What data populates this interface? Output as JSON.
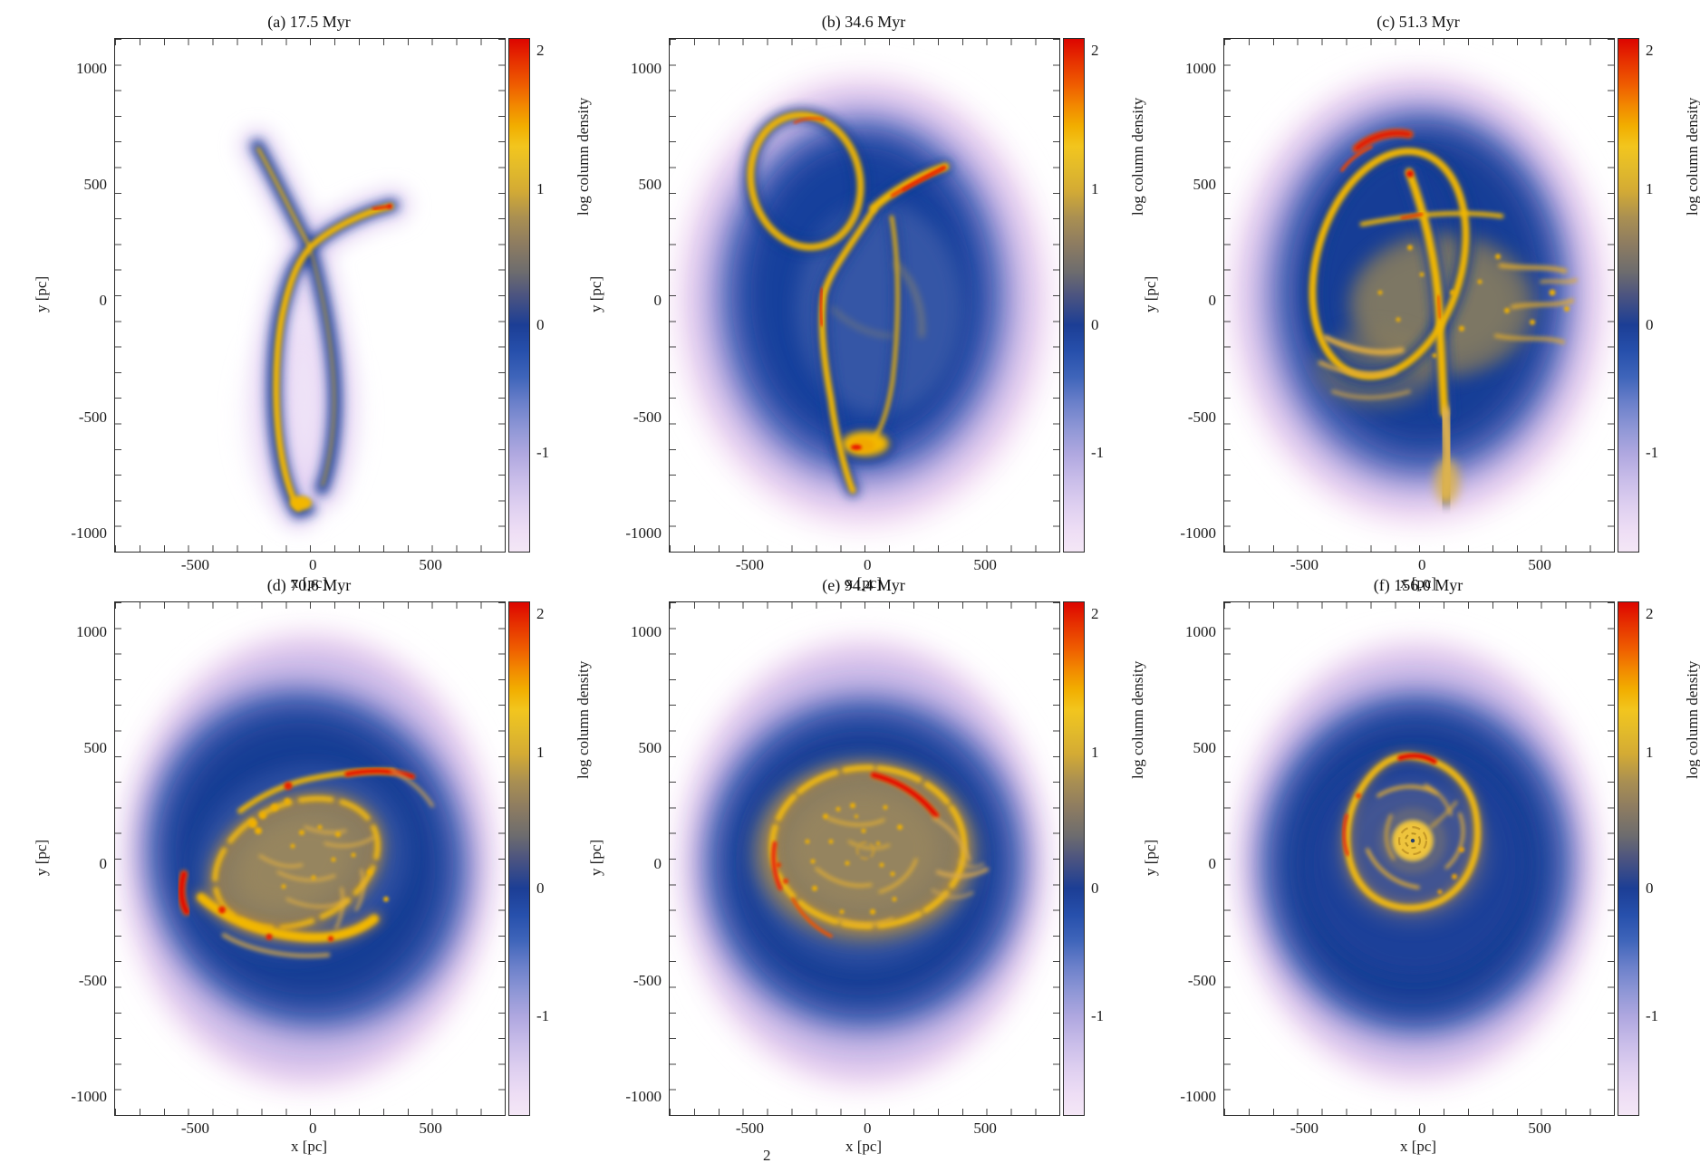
{
  "figure": {
    "xlabel": "x [pc]",
    "ylabel": "y [pc]",
    "colorbar_label": "log column density",
    "caption_fragment": "2",
    "y_ticks": [
      "1000",
      "500",
      "0",
      "-500",
      "-1000"
    ],
    "x_ticks": [
      "-500",
      "0",
      "500"
    ],
    "cb_ticks": [
      "2",
      "1",
      "0",
      "-1"
    ],
    "panels": [
      {
        "key": "a",
        "title": "(a) 17.5 Myr"
      },
      {
        "key": "b",
        "title": "(b) 34.6 Myr"
      },
      {
        "key": "c",
        "title": "(c) 51.3 Myr"
      },
      {
        "key": "d",
        "title": "(d) 70.6 Myr"
      },
      {
        "key": "e",
        "title": "(e) 94.4 Myr"
      },
      {
        "key": "f",
        "title": "(f) 156.0 Myr"
      }
    ]
  },
  "chart_data": {
    "type": "heatmap",
    "layout": "2 rows x 3 columns of simulation snapshots",
    "panels": [
      {
        "label": "(a) 17.5 Myr",
        "time_myr": 17.5
      },
      {
        "label": "(b) 34.6 Myr",
        "time_myr": 34.6
      },
      {
        "label": "(c) 51.3 Myr",
        "time_myr": 51.3
      },
      {
        "label": "(d) 70.6 Myr",
        "time_myr": 70.6
      },
      {
        "label": "(e) 94.4 Myr",
        "time_myr": 94.4
      },
      {
        "label": "(f) 156.0 Myr",
        "time_myr": 156.0
      }
    ],
    "xlabel": "x [pc]",
    "ylabel": "y [pc]",
    "x_ticks": [
      -500,
      0,
      500
    ],
    "y_ticks": [
      -1000,
      -500,
      0,
      500,
      1000
    ],
    "xlim": [
      -850,
      850
    ],
    "ylim": [
      -1080,
      1120
    ],
    "grid": false,
    "legend": "none",
    "colorbar": {
      "label": "log column density",
      "ticks": [
        2,
        1,
        0,
        -1
      ],
      "range": [
        2,
        -1.7
      ],
      "colormap_stops": [
        {
          "value": 2.0,
          "color": "#dd0500"
        },
        {
          "value": 1.6,
          "color": "#ef5d00"
        },
        {
          "value": 1.3,
          "color": "#f2ae00"
        },
        {
          "value": 1.1,
          "color": "#f2c51e"
        },
        {
          "value": 1.0,
          "color": "#d4ab34"
        },
        {
          "value": 0.7,
          "color": "#a08a55"
        },
        {
          "value": 0.4,
          "color": "#6d6c6e"
        },
        {
          "value": 0.1,
          "color": "#3a4a85"
        },
        {
          "value": 0.0,
          "color": "#1c3e95"
        },
        {
          "value": -0.3,
          "color": "#3c62b8"
        },
        {
          "value": -0.6,
          "color": "#7e8bd0"
        },
        {
          "value": -1.0,
          "color": "#c9bde9"
        },
        {
          "value": -1.5,
          "color": "#f0e0f5"
        },
        {
          "value": -1.7,
          "color": "#f6e9f7"
        }
      ]
    }
  }
}
